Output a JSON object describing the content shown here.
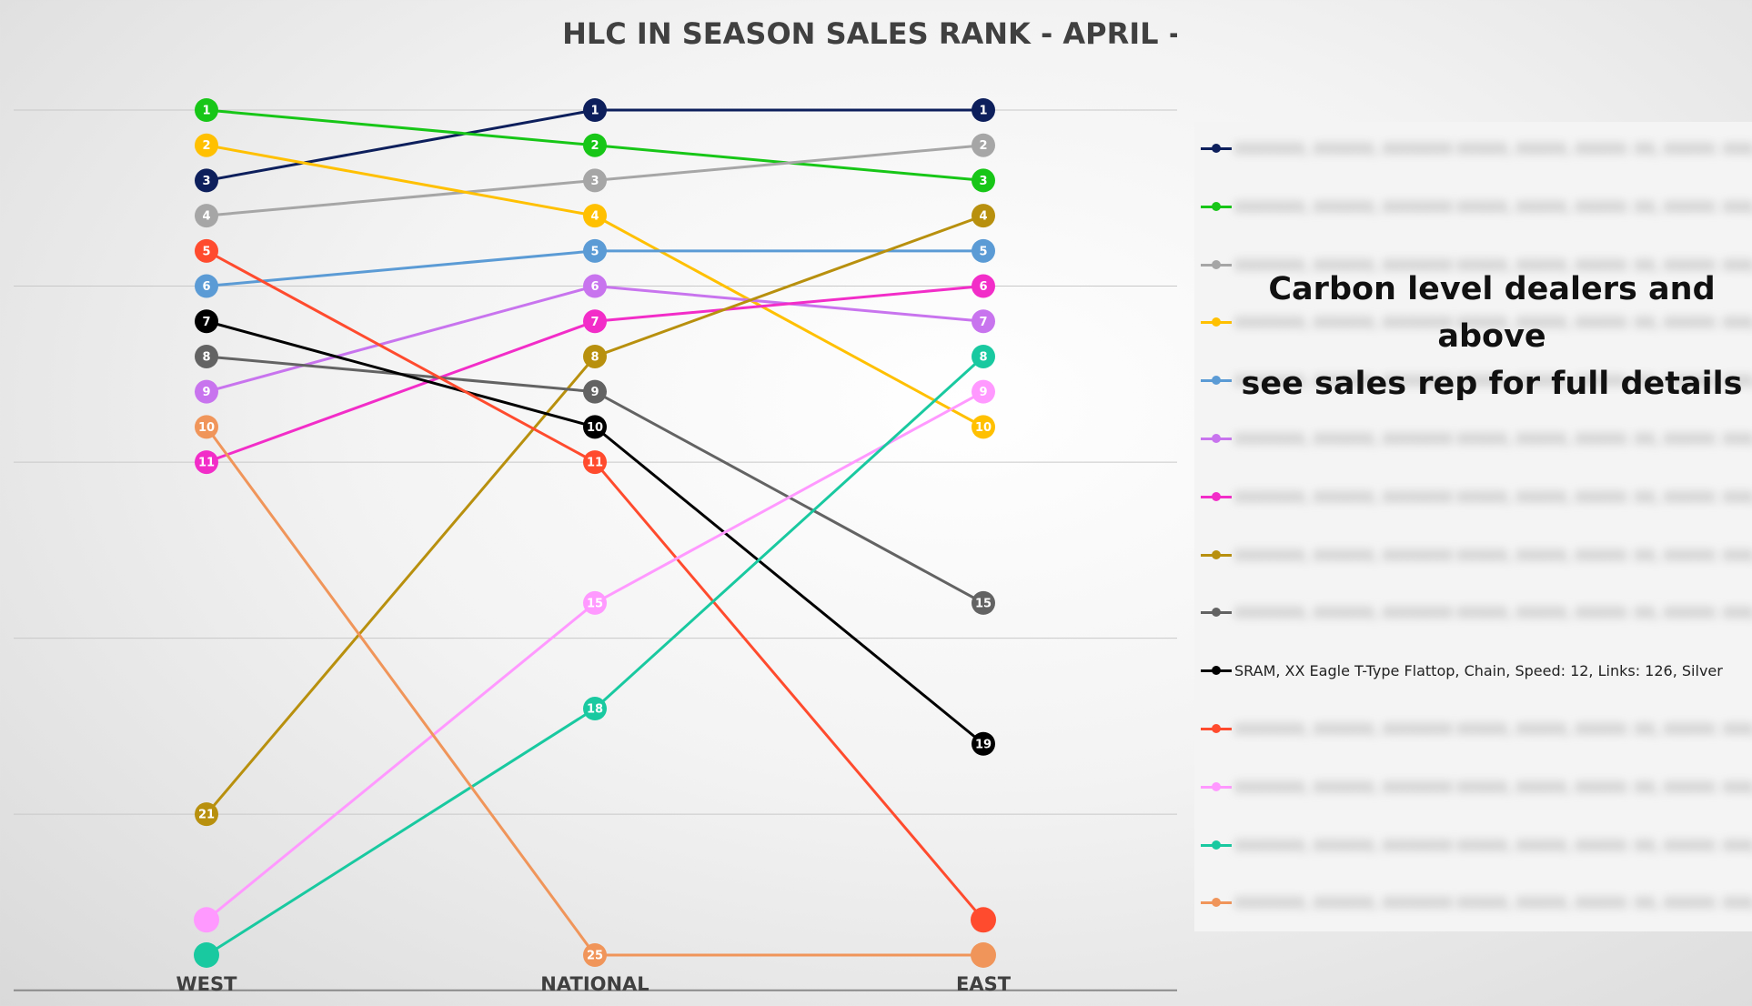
{
  "chart_data": {
    "type": "line",
    "title": "HLC IN SEASON SALES RANK - APRIL - CHAINS",
    "categories": [
      "WEST",
      "NATIONAL",
      "EAST"
    ],
    "y_axis": {
      "reversed": true,
      "min": 1,
      "max": 25,
      "gridlines": true
    },
    "series": [
      {
        "name": "",
        "color": "#0d1f5c",
        "values": [
          3,
          1,
          1
        ],
        "labels": [
          "3",
          "1",
          "1"
        ]
      },
      {
        "name": "",
        "color": "#17c617",
        "values": [
          1,
          2,
          3
        ],
        "labels": [
          "1",
          "2",
          "3"
        ]
      },
      {
        "name": "",
        "color": "#a6a6a6",
        "values": [
          4,
          3,
          2
        ],
        "labels": [
          "4",
          "3",
          "2"
        ]
      },
      {
        "name": "",
        "color": "#ffc000",
        "values": [
          2,
          4,
          10
        ],
        "labels": [
          "2",
          "4",
          "10"
        ]
      },
      {
        "name": "",
        "color": "#5b9bd5",
        "values": [
          6,
          5,
          5
        ],
        "labels": [
          "6",
          "5",
          "5"
        ]
      },
      {
        "name": "",
        "color": "#c874ee",
        "values": [
          9,
          6,
          7
        ],
        "labels": [
          "9",
          "6",
          "7"
        ]
      },
      {
        "name": "",
        "color": "#f22dc8",
        "values": [
          11,
          7,
          6
        ],
        "labels": [
          "11",
          "7",
          "6"
        ]
      },
      {
        "name": "",
        "color": "#b8900e",
        "values": [
          21,
          8,
          4
        ],
        "labels": [
          "21",
          "8",
          "4"
        ]
      },
      {
        "name": "",
        "color": "#636363",
        "values": [
          8,
          9,
          15
        ],
        "labels": [
          "8",
          "9",
          "15"
        ]
      },
      {
        "name": "SRAM, XX Eagle T-Type Flattop, Chain, Speed: 12, Links: 126, Silver",
        "color": "#000000",
        "values": [
          7,
          10,
          19
        ],
        "labels": [
          "7",
          "10",
          "19"
        ]
      },
      {
        "name": "",
        "color": "#ff4b2e",
        "values": [
          5,
          11,
          24
        ],
        "labels": [
          "5",
          "11",
          ""
        ]
      },
      {
        "name": "",
        "color": "#ff99ff",
        "values": [
          24,
          15,
          9
        ],
        "labels": [
          "",
          "15",
          "9"
        ]
      },
      {
        "name": "",
        "color": "#19c9a0",
        "values": [
          25,
          18,
          8
        ],
        "labels": [
          "",
          "18",
          "8"
        ]
      },
      {
        "name": "",
        "color": "#f0955a",
        "values": [
          10,
          25,
          25
        ],
        "labels": [
          "10",
          "25",
          ""
        ]
      }
    ]
  },
  "legend": {
    "visible_label": "SRAM, XX Eagle T-Type Flattop, Chain, Speed: 12, Links: 126, Silver",
    "blurred_placeholder": "XXXXXXX, XXXXXX, XXXXXXX XXXXX, XXXXX, XXXXX: XX, XXXXX: XXX, XXXXX"
  },
  "overlay_note": {
    "line1": "Carbon level dealers and above",
    "line2": "see sales rep for full details"
  }
}
